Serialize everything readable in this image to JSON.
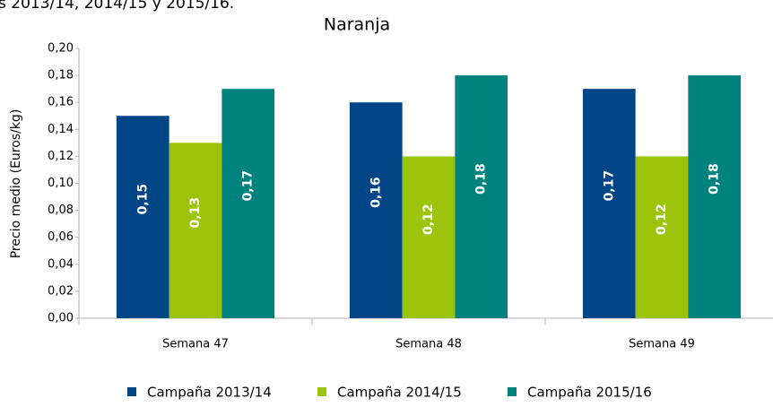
{
  "chart_data": {
    "type": "bar",
    "annotation": "s 2013/14, 2014/15 y 2015/16.",
    "title": "Naranja",
    "y_label": "Precio medio (Euros/kg)",
    "categories": [
      "Semana 47",
      "Semana 48",
      "Semana 49"
    ],
    "series": [
      {
        "name": "Campaña 2013/14",
        "color": "#004586",
        "values": [
          0.15,
          0.16,
          0.17
        ],
        "value_labels": [
          "0,15",
          "0,16",
          "0,17"
        ]
      },
      {
        "name": "Campaña 2014/15",
        "color": "#9dc40c",
        "values": [
          0.13,
          0.12,
          0.12
        ],
        "value_labels": [
          "0,13",
          "0,12",
          "0,12"
        ]
      },
      {
        "name": "Campaña 2015/16",
        "color": "#00827f",
        "values": [
          0.17,
          0.18,
          0.18
        ],
        "value_labels": [
          "0,17",
          "0,18",
          "0,18"
        ]
      }
    ],
    "ylim": [
      0,
      0.2
    ],
    "yticks": [
      {
        "value": 0,
        "label": "0,00"
      },
      {
        "value": 0.02,
        "label": "0,02"
      },
      {
        "value": 0.04,
        "label": "0,04"
      },
      {
        "value": 0.06,
        "label": "0,06"
      },
      {
        "value": 0.08,
        "label": "0,08"
      },
      {
        "value": 0.1,
        "label": "0,10"
      },
      {
        "value": 0.12,
        "label": "0,12"
      },
      {
        "value": 0.14,
        "label": "0,14"
      },
      {
        "value": 0.16,
        "label": "0,16"
      },
      {
        "value": 0.18,
        "label": "0,18"
      },
      {
        "value": 0.2,
        "label": "0,20"
      }
    ],
    "grid": false,
    "legend": "bottom"
  }
}
